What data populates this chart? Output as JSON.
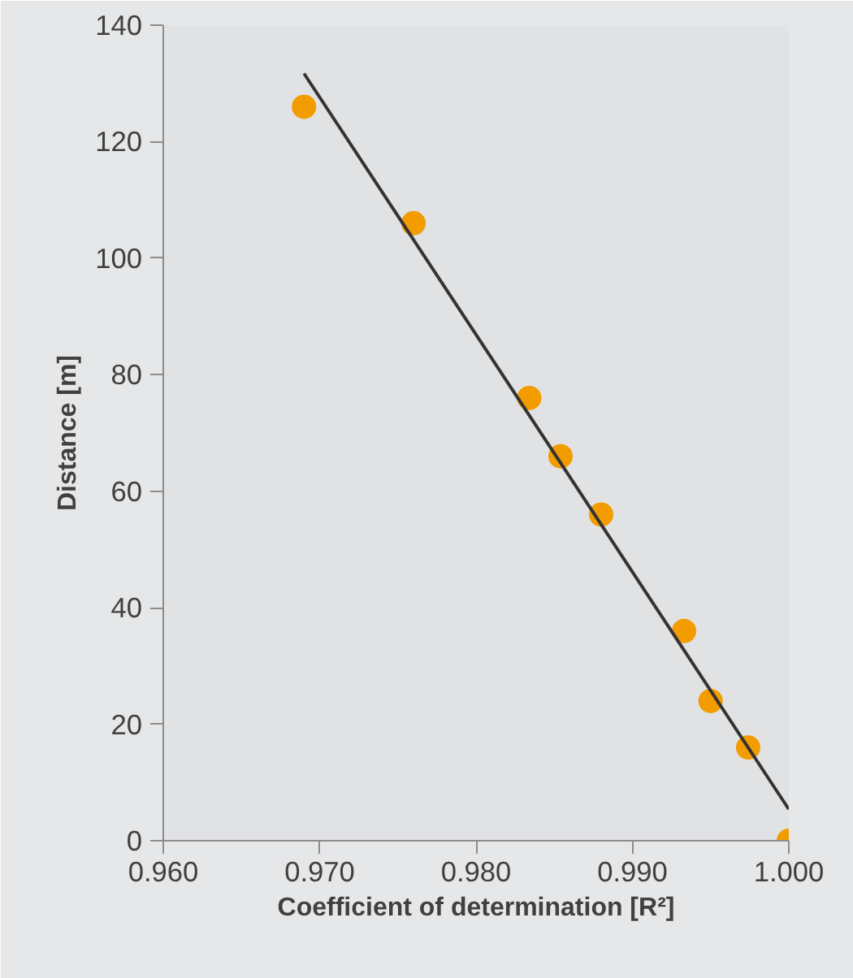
{
  "chart_data": {
    "type": "scatter",
    "xlabel": "Coefficient of determination [R²]",
    "ylabel": "Distance [m]",
    "xlim": [
      0.96,
      1.0
    ],
    "xticks": [
      {
        "value": 0.96,
        "label": "0.960"
      },
      {
        "value": 0.97,
        "label": "0.970"
      },
      {
        "value": 0.98,
        "label": "0.980"
      },
      {
        "value": 0.99,
        "label": "0.990"
      },
      {
        "value": 1.0,
        "label": "1.000"
      }
    ],
    "ylim": [
      0,
      140
    ],
    "yticks": [
      0,
      20,
      40,
      60,
      80,
      100,
      120,
      140
    ],
    "marker": "circle",
    "series": [
      {
        "color": "#f39c00",
        "x": [
          0.969,
          0.976,
          0.9834,
          0.9854,
          0.988,
          0.9933,
          0.995,
          0.9974,
          1.0
        ],
        "values": [
          126,
          106,
          76,
          66,
          56,
          36,
          24,
          16,
          0
        ]
      },
      {
        "type": "line",
        "color": "#333333",
        "line_style": "solid",
        "marker": "none",
        "x": [
          0.969,
          1.0
        ],
        "values": [
          131.7,
          5.4
        ]
      }
    ]
  }
}
